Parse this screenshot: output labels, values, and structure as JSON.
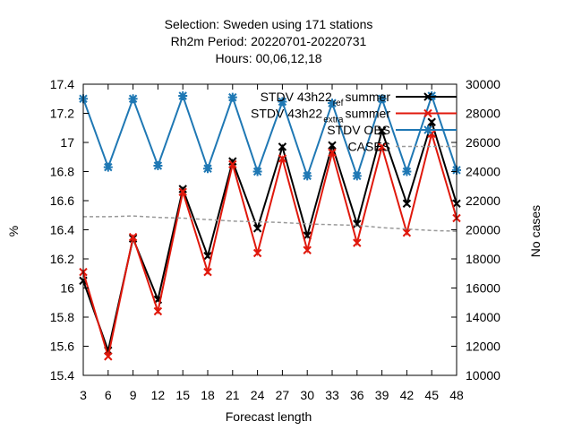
{
  "title_lines": [
    "Selection: Sweden using   171 stations",
    "Rh2m   Period: 20220701-20220731",
    "Hours: 00,06,12,18"
  ],
  "chart_data": {
    "type": "line",
    "xlabel": "Forecast length",
    "ylabel": "%",
    "y2label": "No cases",
    "x": [
      3,
      6,
      9,
      12,
      15,
      18,
      21,
      24,
      27,
      30,
      33,
      36,
      39,
      42,
      45,
      48
    ],
    "xlim": [
      3,
      48
    ],
    "ylim": [
      15.4,
      17.4
    ],
    "y2lim": [
      10000,
      30000
    ],
    "yticks": [
      "15.4",
      "15.6",
      "15.8",
      "16",
      "16.2",
      "16.4",
      "16.6",
      "16.8",
      "17",
      "17.2",
      "17.4"
    ],
    "y2ticks": [
      "10000",
      "12000",
      "14000",
      "16000",
      "18000",
      "20000",
      "22000",
      "24000",
      "26000",
      "28000",
      "30000"
    ],
    "legend_position": "top-right",
    "series": [
      {
        "name": "STDV 43h22_ref_summer",
        "legend_main": "STDV 43h22",
        "legend_sub1": "ref",
        "legend_mid": "summer",
        "legend_sub1_style": "subscript",
        "color": "#000000",
        "marker": "x",
        "axis": "left",
        "values": [
          16.05,
          15.57,
          16.34,
          15.92,
          16.68,
          16.22,
          16.87,
          16.41,
          16.97,
          16.36,
          16.98,
          16.44,
          17.08,
          16.58,
          17.14,
          16.58
        ]
      },
      {
        "name": "STDV 43h22_extra_summer",
        "legend_main": "STDV 43h22",
        "legend_sub1": "extra",
        "legend_mid": "summer",
        "legend_sub1_style": "subscript",
        "color": "#e0180c",
        "marker": "x",
        "axis": "left",
        "values": [
          16.11,
          15.53,
          16.35,
          15.84,
          16.66,
          16.11,
          16.85,
          16.24,
          16.89,
          16.26,
          16.93,
          16.31,
          16.97,
          16.38,
          17.06,
          16.48
        ]
      },
      {
        "name": "STDV OBS",
        "color": "#1f78b4",
        "marker": "star",
        "axis": "left",
        "values": [
          17.3,
          16.83,
          17.3,
          16.84,
          17.32,
          16.82,
          17.31,
          16.8,
          17.28,
          16.77,
          17.27,
          16.77,
          17.3,
          16.8,
          17.32,
          16.81
        ]
      },
      {
        "name": "CASES",
        "color": "#999999",
        "dashed": true,
        "axis": "right",
        "values": [
          20900,
          20900,
          20950,
          20850,
          20800,
          20700,
          20600,
          20550,
          20500,
          20400,
          20350,
          20300,
          20150,
          20050,
          19950,
          19900
        ]
      }
    ]
  }
}
